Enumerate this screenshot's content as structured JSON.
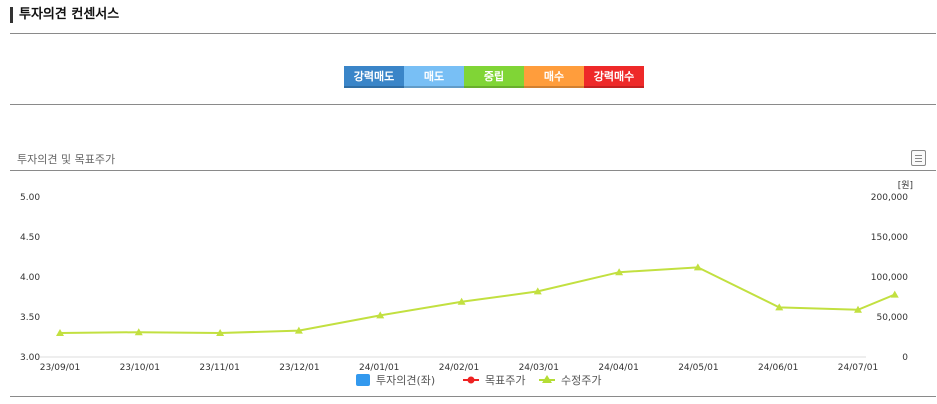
{
  "header": {
    "title": "투자의견 컨센서스"
  },
  "consensus": {
    "buttons": [
      {
        "label": "강력매도",
        "color": "#3a85c8"
      },
      {
        "label": "매도",
        "color": "#78bff5"
      },
      {
        "label": "중립",
        "color": "#80d536"
      },
      {
        "label": "매수",
        "color": "#ff9d3c"
      },
      {
        "label": "강력매수",
        "color": "#ee2929"
      }
    ]
  },
  "chart_section": {
    "title": "투자의견 및 목표주가",
    "icon": "document-list-icon"
  },
  "chart_data": {
    "type": "line",
    "x": [
      "23/09/01",
      "23/10/01",
      "23/11/01",
      "23/12/01",
      "24/01/01",
      "24/02/01",
      "24/03/01",
      "24/04/01",
      "24/05/01",
      "24/06/01",
      "24/07/01"
    ],
    "y_left": {
      "ylim": [
        3.0,
        5.0
      ],
      "ticks": [
        "3.00",
        "3.50",
        "4.00",
        "4.50",
        "5.00"
      ]
    },
    "y_right": {
      "unit": "[원]",
      "ylim": [
        0,
        200000
      ],
      "ticks": [
        "0",
        "50,000",
        "100,000",
        "150,000",
        "200,000"
      ]
    },
    "legend": [
      {
        "name": "투자의견(좌)",
        "color": "#3399ee",
        "marker": "square"
      },
      {
        "name": "목표주가",
        "color": "#ee2222",
        "marker": "circle"
      },
      {
        "name": "수정주가",
        "color": "#b4dd35",
        "marker": "triangle"
      }
    ],
    "series": [
      {
        "name": "수정주가",
        "axis": "right",
        "color": "#c2e040",
        "points": [
          [
            "23/09/01",
            30000
          ],
          [
            "23/10/01",
            31000
          ],
          [
            "23/11/01",
            30000
          ],
          [
            "23/12/01",
            33000
          ],
          [
            "24/01/01",
            52000
          ],
          [
            "24/02/01",
            69000
          ],
          [
            "24/03/01",
            82000
          ],
          [
            "24/04/01",
            106000
          ],
          [
            "24/05/01",
            112000
          ],
          [
            "24/06/01",
            62000
          ],
          [
            "24/07/01",
            59000
          ],
          [
            "24/07/15",
            78000
          ]
        ]
      }
    ],
    "grid": false,
    "legend_position": "bottom-center"
  }
}
